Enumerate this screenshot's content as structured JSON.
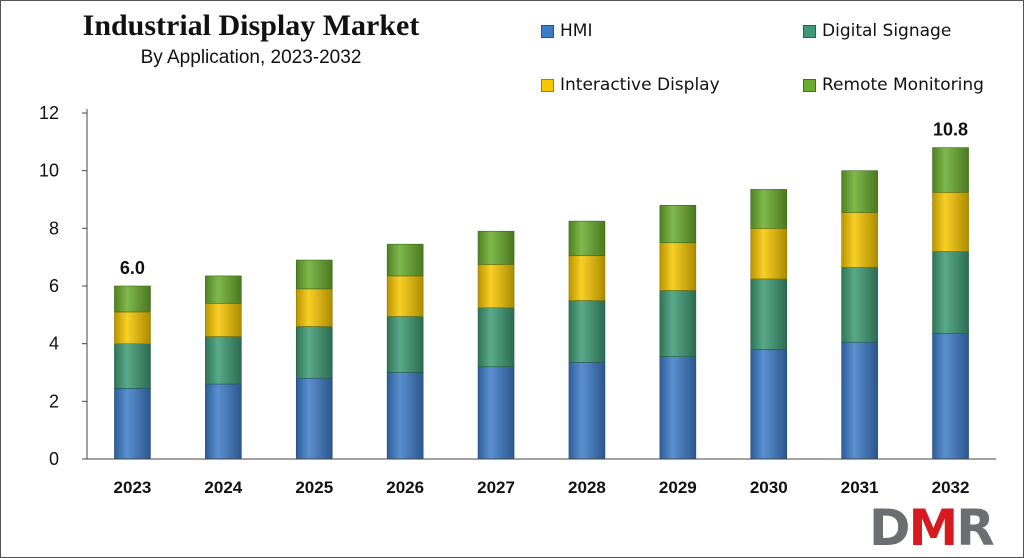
{
  "title": "Industrial Display Market",
  "subtitle": "By Application, 2023-2032",
  "legend": [
    {
      "label": "HMI",
      "color": "#3d7cc9"
    },
    {
      "label": "Digital Signage",
      "color": "#3e9a74"
    },
    {
      "label": "Interactive Display",
      "color": "#f7c600"
    },
    {
      "label": "Remote Monitoring",
      "color": "#6aac2d"
    }
  ],
  "logo": {
    "text_gray_1": "D",
    "text_red": "M",
    "text_gray_2": "R"
  },
  "chart_data": {
    "type": "bar",
    "stacked": true,
    "categories": [
      "2023",
      "2024",
      "2025",
      "2026",
      "2027",
      "2028",
      "2029",
      "2030",
      "2031",
      "2032"
    ],
    "series": [
      {
        "name": "HMI",
        "values": [
          2.45,
          2.6,
          2.8,
          3.0,
          3.2,
          3.35,
          3.55,
          3.8,
          4.05,
          4.35
        ]
      },
      {
        "name": "Digital Signage",
        "values": [
          1.55,
          1.65,
          1.8,
          1.95,
          2.05,
          2.15,
          2.3,
          2.45,
          2.6,
          2.85
        ]
      },
      {
        "name": "Interactive Display",
        "values": [
          1.1,
          1.15,
          1.3,
          1.4,
          1.5,
          1.55,
          1.65,
          1.75,
          1.9,
          2.05
        ]
      },
      {
        "name": "Remote Monitoring",
        "values": [
          0.9,
          0.95,
          1.0,
          1.1,
          1.15,
          1.2,
          1.3,
          1.35,
          1.45,
          1.55
        ]
      }
    ],
    "totals_labels": [
      {
        "category": "2023",
        "text": "6.0"
      },
      {
        "category": "2032",
        "text": "10.8"
      }
    ],
    "ylim": [
      0,
      12
    ],
    "yticks": [
      0,
      2,
      4,
      6,
      8,
      10,
      12
    ],
    "grid": false,
    "legend_position": "top-right",
    "xlabel": "",
    "ylabel": ""
  }
}
